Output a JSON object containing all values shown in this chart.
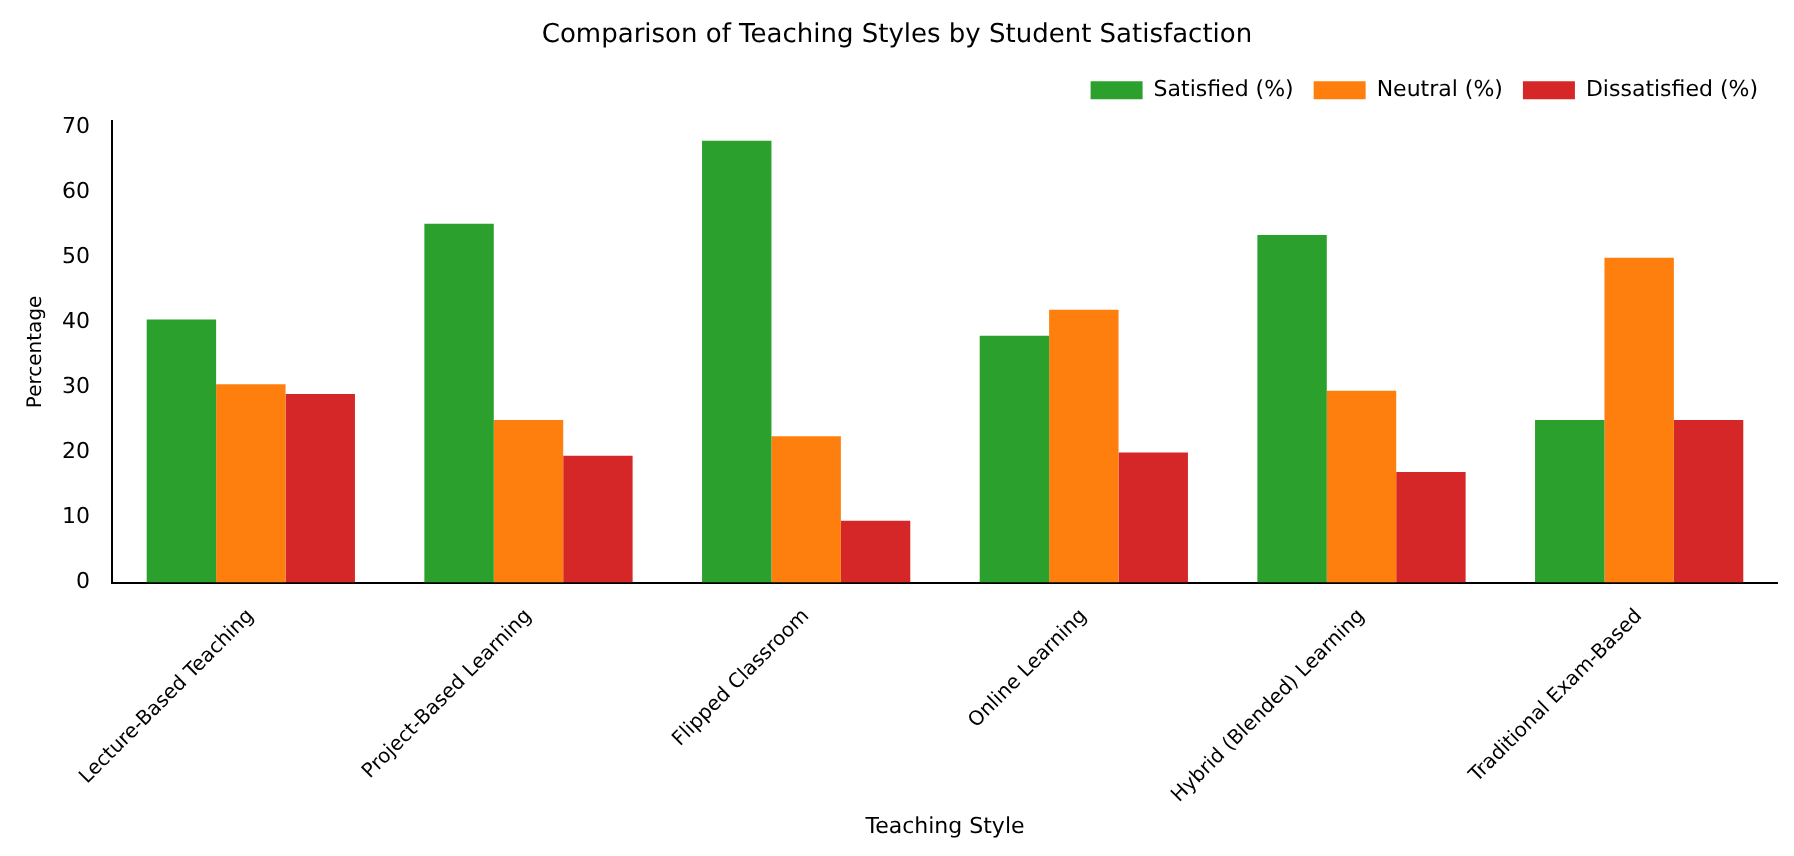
{
  "chart_data": {
    "type": "bar",
    "title": "Comparison of Teaching Styles by Student Satisfaction",
    "xlabel": "Teaching Style",
    "ylabel": "Percentage",
    "categories": [
      "Lecture-Based Teaching",
      "Project-Based Learning",
      "Flipped Classroom",
      "Online Learning",
      "Hybrid (Blended) Learning",
      "Traditional Exam-Based"
    ],
    "series": [
      {
        "name": "Satisfied (%)",
        "color": "#2ca02c",
        "values": [
          40.5,
          55.2,
          68,
          38,
          53.5,
          25
        ]
      },
      {
        "name": "Neutral (%)",
        "color": "#ff7f0e",
        "values": [
          30.5,
          25,
          22.5,
          42,
          29.5,
          50
        ]
      },
      {
        "name": "Dissatisfied (%)",
        "color": "#d62728",
        "values": [
          29,
          19.5,
          9.5,
          20,
          17,
          25
        ]
      }
    ],
    "ylim": [
      0,
      71
    ],
    "yticks": [
      0,
      10,
      20,
      30,
      40,
      50,
      60,
      70
    ],
    "grid": false,
    "legend": "top right"
  }
}
